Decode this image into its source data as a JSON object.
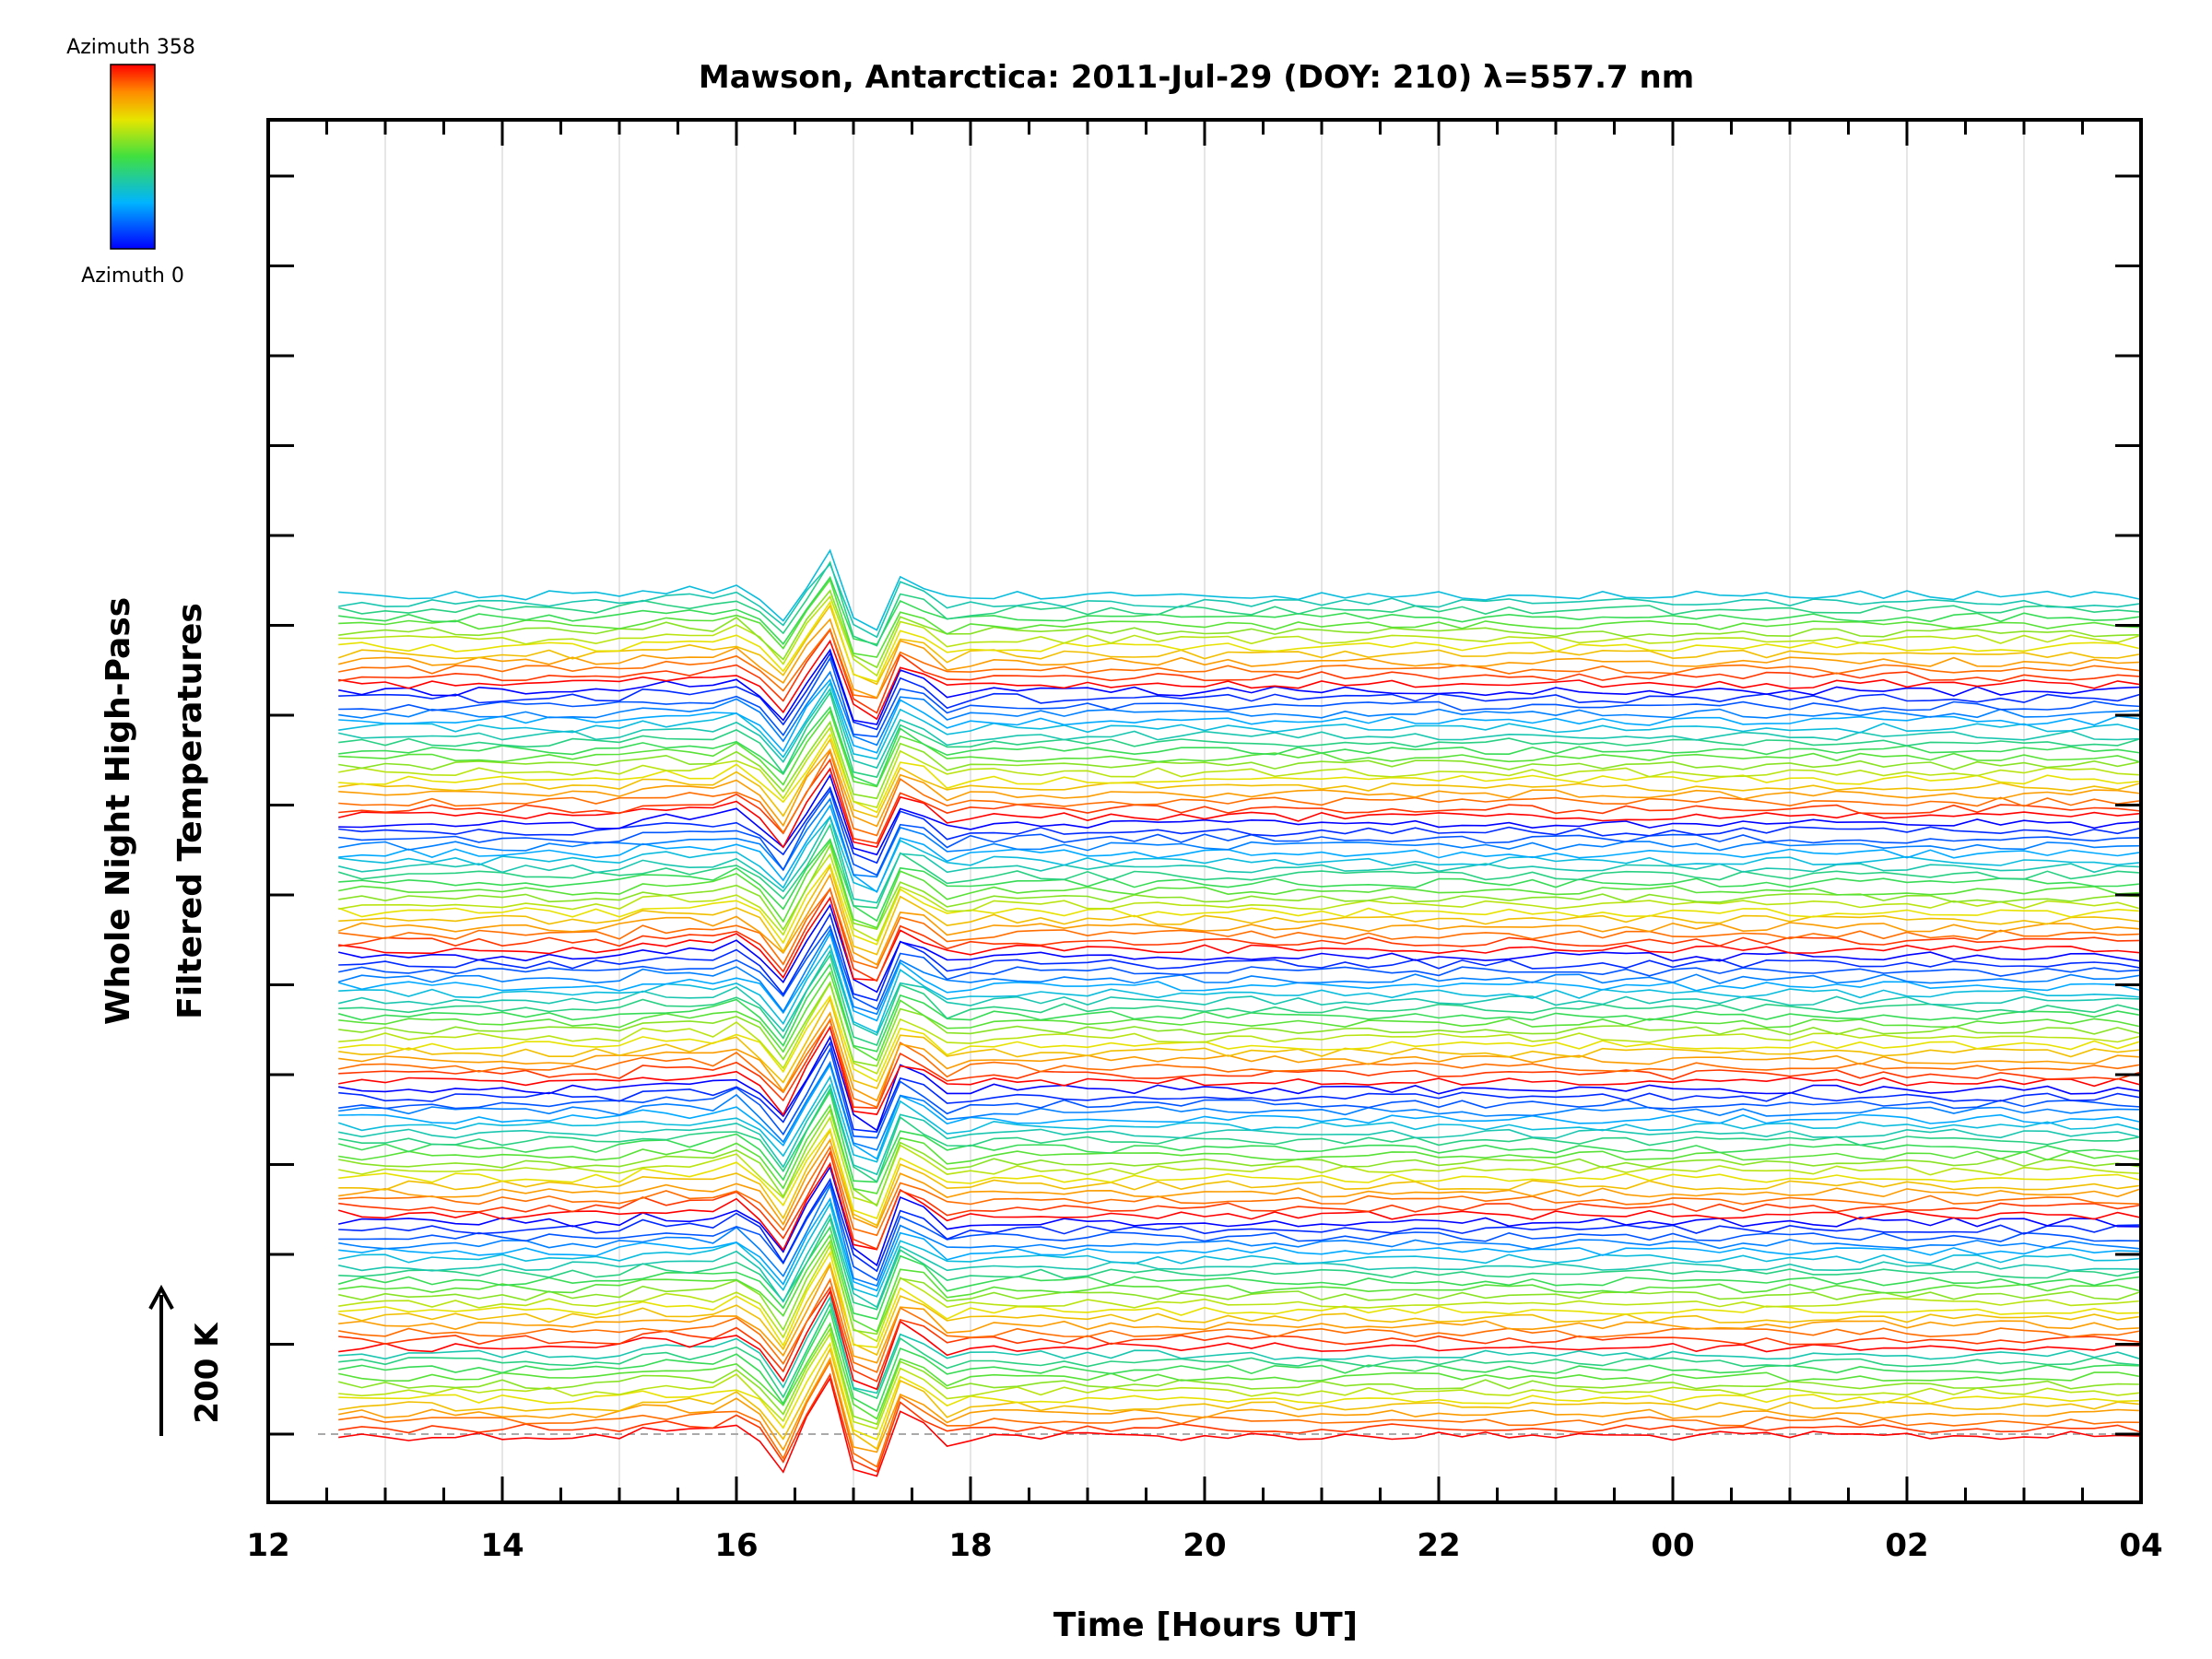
{
  "chart_data": {
    "type": "line",
    "title": "Mawson, Antarctica: 2011-Jul-29 (DOY: 210) λ=557.7 nm",
    "xlabel": "Time [Hours UT]",
    "ylabel_line1": "Whole Night High-Pass",
    "ylabel_line2": "Filtered Temperatures",
    "x_tick_labels": [
      "12",
      "14",
      "16",
      "18",
      "20",
      "22",
      "00",
      "02",
      "04"
    ],
    "x_range_hours_ut": [
      12,
      28
    ],
    "data_start_hour": 12.6,
    "data_end_hour": 28.0,
    "sample_interval_hours": 0.2,
    "traces_count": 115,
    "stack_groups": [
      {
        "name": "group-1",
        "traces": 12
      },
      {
        "name": "group-2",
        "traces": 18
      },
      {
        "name": "group-3",
        "traces": 18
      },
      {
        "name": "group-4",
        "traces": 18
      },
      {
        "name": "group-5",
        "traces": 18
      },
      {
        "name": "group-6",
        "traces": 18
      },
      {
        "name": "group-7",
        "traces": 13
      }
    ],
    "azimuth_order": "azimuth 358 to azimuth 0 within each group, groups stacked bottom to top",
    "scale_bar": {
      "label": "200 K",
      "value_k": 200
    },
    "colorbar": {
      "top_label": "Azimuth 358",
      "bottom_label": "Azimuth 0",
      "colormap": "rainbow (blue at 0, red at 358)"
    },
    "wave_event": {
      "center_hour": 16.9,
      "description": "large oscillation visible in all traces between about 16 and 18 UT"
    },
    "grid": "vertical gridlines at every hour",
    "baseline": "dashed grey line at bottom trace level"
  }
}
